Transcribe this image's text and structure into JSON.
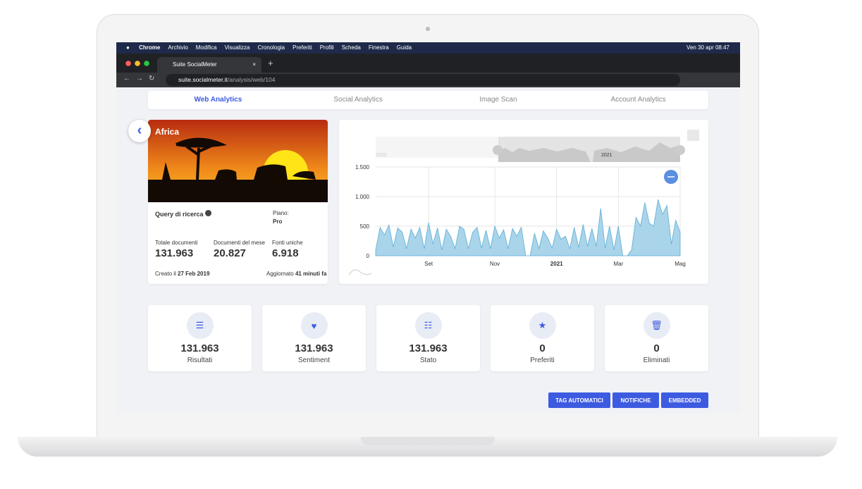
{
  "menubar": {
    "app": "Chrome",
    "items": [
      "Archivio",
      "Modifica",
      "Visualizza",
      "Cronologia",
      "Preferiti",
      "Profili",
      "Scheda",
      "Finestra",
      "Guida"
    ],
    "clock": "Ven 30 apr  08:47"
  },
  "browser": {
    "tab": "Suite SocialMeter",
    "url_host": "suite.socialmeter.it",
    "url_path": "/analysis/web/104"
  },
  "nav": [
    "Web Analytics",
    "Social Analytics",
    "Image Scan",
    "Account Analytics"
  ],
  "project": {
    "name": "Africa",
    "query_label": "Query di ricerca",
    "plan_label": "Piano:",
    "plan": "Pro",
    "stats": [
      {
        "label": "Totale documenti",
        "value": "131.963"
      },
      {
        "label": "Documenti del mese",
        "value": "20.827"
      },
      {
        "label": "Fonti uniche",
        "value": "6.918"
      }
    ],
    "created_label": "Creato il",
    "created": "27 Feb 2019",
    "updated_label": "Aggiornato",
    "updated": "41 minuti fa"
  },
  "chart_data": {
    "type": "area",
    "color": "#a9d4ea",
    "line_color": "#5aaed6",
    "navigator_labels": [
      "2020",
      "2021"
    ],
    "categories": [
      null,
      null,
      null,
      null,
      null,
      null,
      null,
      null,
      null,
      null,
      null,
      null,
      "Set",
      null,
      null,
      null,
      null,
      null,
      null,
      null,
      null,
      null,
      null,
      null,
      null,
      null,
      null,
      "Nov",
      null,
      null,
      null,
      null,
      null,
      null,
      null,
      null,
      null,
      null,
      null,
      null,
      null,
      "2021",
      null,
      null,
      null,
      null,
      null,
      null,
      null,
      null,
      null,
      null,
      null,
      null,
      null,
      "Mar",
      null,
      null,
      null,
      null,
      null,
      null,
      null,
      null,
      null,
      null,
      null,
      null,
      null,
      "Mag"
    ],
    "values": [
      100,
      480,
      350,
      520,
      150,
      470,
      400,
      120,
      450,
      300,
      480,
      120,
      560,
      200,
      470,
      100,
      450,
      330,
      120,
      500,
      450,
      120,
      400,
      480,
      130,
      430,
      120,
      500,
      300,
      440,
      120,
      460,
      330,
      480,
      0,
      0,
      380,
      120,
      420,
      300,
      130,
      450,
      280,
      330,
      120,
      480,
      140,
      530,
      160,
      460,
      160,
      800,
      130,
      500,
      100,
      500,
      0,
      0,
      100,
      650,
      500,
      900,
      550,
      500,
      950,
      700,
      850,
      200,
      600,
      400
    ],
    "ylim": [
      0,
      1500
    ],
    "yticks": [
      0,
      500,
      {
        "value": 1000,
        "label": "1.000"
      },
      {
        "value": 1500,
        "label": "1.500"
      }
    ],
    "grid": true
  },
  "summary": [
    {
      "value": "131.963",
      "label": "Risultati"
    },
    {
      "value": "131.963",
      "label": "Sentiment"
    },
    {
      "value": "131.963",
      "label": "Stato"
    },
    {
      "value": "0",
      "label": "Preferiti"
    },
    {
      "value": "0",
      "label": "Eliminati"
    }
  ],
  "buttons": [
    "TAG AUTOMATICI",
    "NOTIFICHE",
    "EMBEDDED"
  ]
}
